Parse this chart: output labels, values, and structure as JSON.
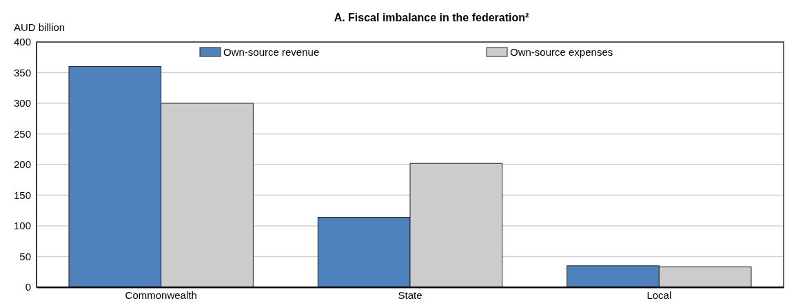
{
  "chart_data": {
    "type": "bar",
    "title": "A. Fiscal imbalance in the federation²",
    "ylabel": "AUD billion",
    "categories": [
      "Commonwealth",
      "State",
      "Local"
    ],
    "series": [
      {
        "name": "Own-source revenue",
        "color": "#4f81bd",
        "values": [
          360,
          114,
          35
        ]
      },
      {
        "name": "Own-source expenses",
        "color": "#cccccc",
        "values": [
          300,
          202,
          33
        ]
      }
    ],
    "ylim": [
      0,
      400
    ],
    "yticks": [
      0,
      50,
      100,
      150,
      200,
      250,
      300,
      350,
      400
    ],
    "grid": "y",
    "legend": "top"
  }
}
